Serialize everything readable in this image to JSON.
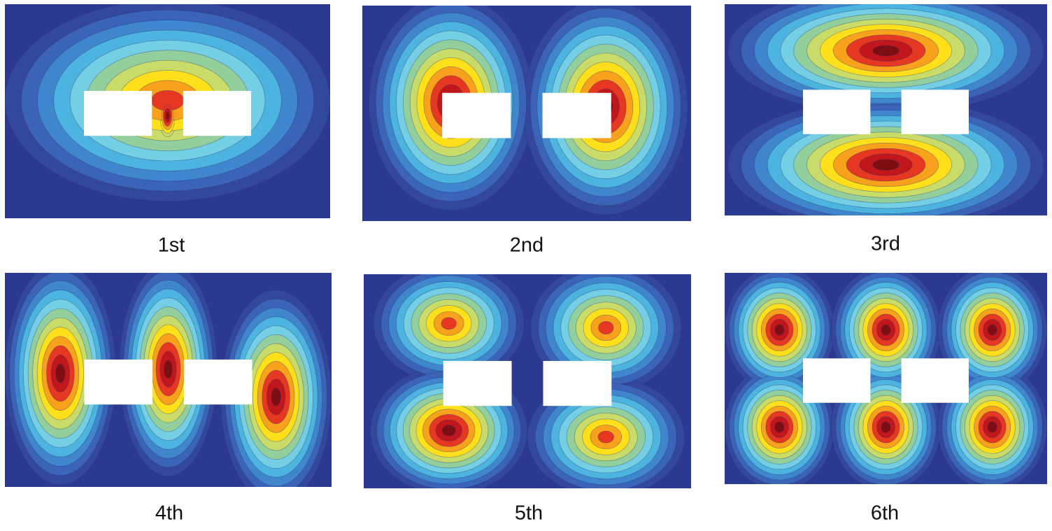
{
  "panels": [
    {
      "label": "1st"
    },
    {
      "label": "2nd"
    },
    {
      "label": "3rd"
    },
    {
      "label": "4th"
    },
    {
      "label": "5th"
    },
    {
      "label": "6th"
    }
  ]
}
